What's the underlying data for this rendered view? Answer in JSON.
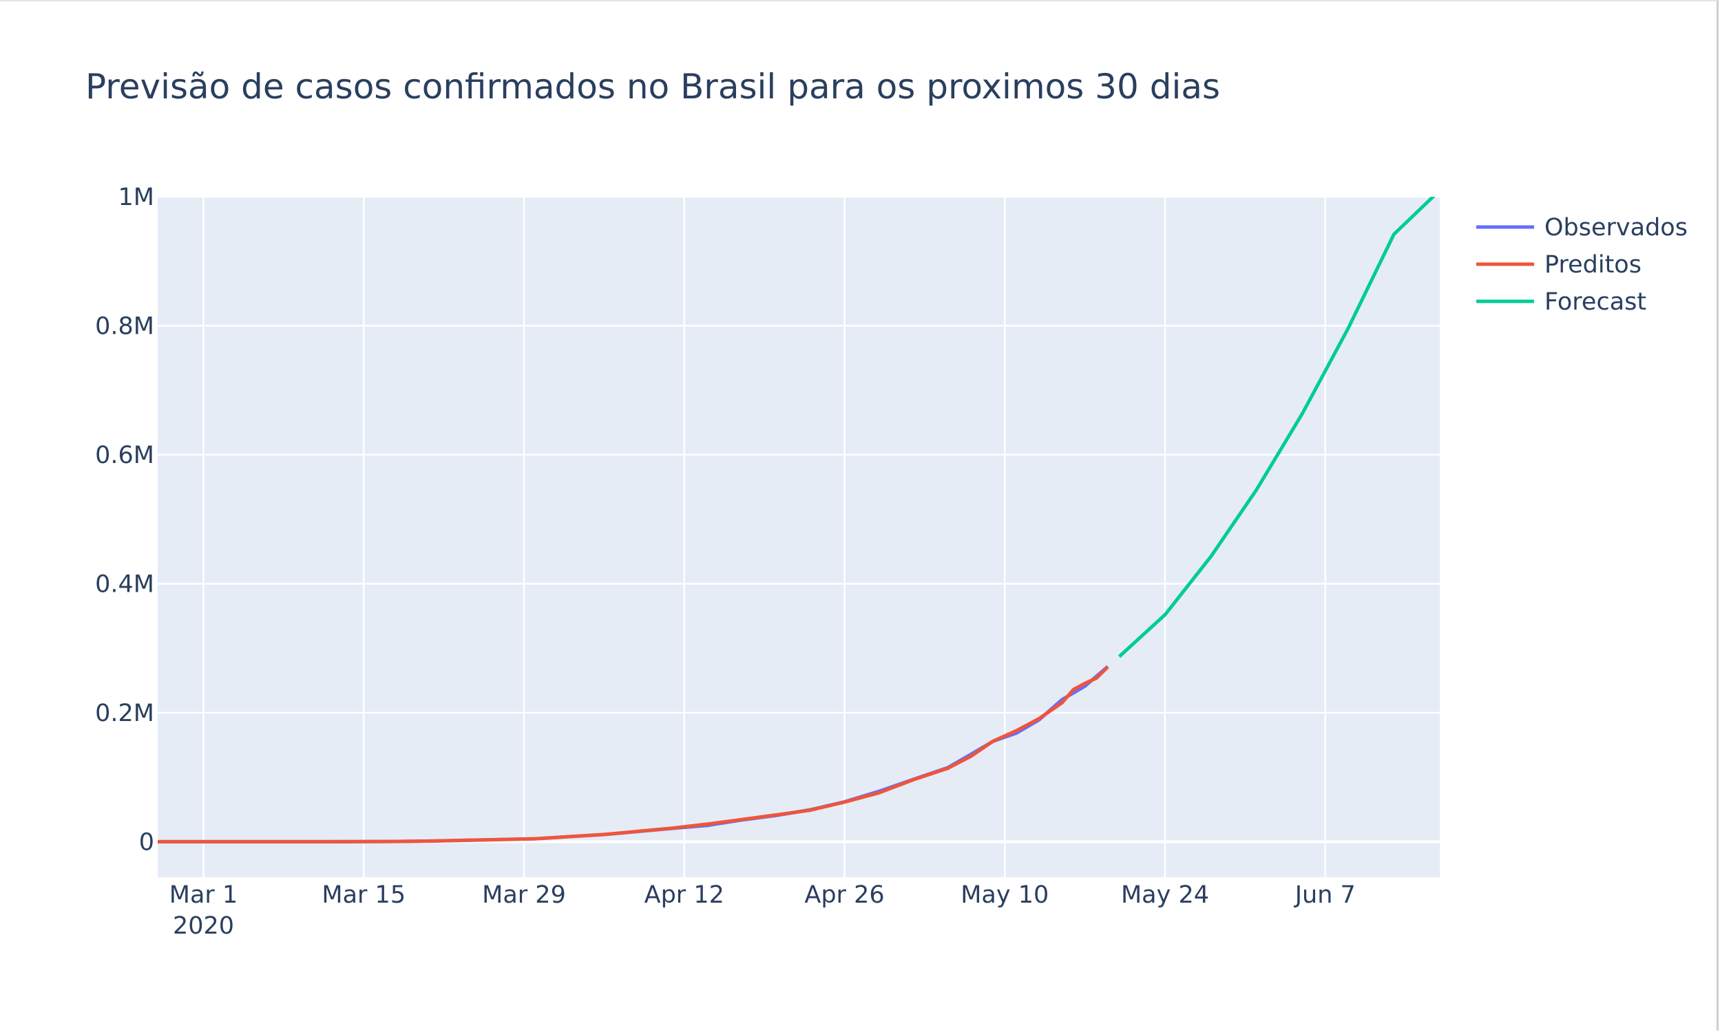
{
  "chart_data": {
    "type": "line",
    "title": "Previsão de casos confirmados no Brasil para os proximos 30 dias",
    "xlabel": "",
    "ylabel": "",
    "x_range": [
      "2020-02-26",
      "2020-06-17"
    ],
    "ylim": [
      -55000,
      1000000
    ],
    "grid": true,
    "legend_position": "top-right",
    "x_ticks": [
      {
        "date": "2020-03-01",
        "label": "Mar 1",
        "sublabel": "2020"
      },
      {
        "date": "2020-03-15",
        "label": "Mar 15"
      },
      {
        "date": "2020-03-29",
        "label": "Mar 29"
      },
      {
        "date": "2020-04-12",
        "label": "Apr 12"
      },
      {
        "date": "2020-04-26",
        "label": "Apr 26"
      },
      {
        "date": "2020-05-10",
        "label": "May 10"
      },
      {
        "date": "2020-05-24",
        "label": "May 24"
      },
      {
        "date": "2020-06-07",
        "label": "Jun 7"
      }
    ],
    "y_ticks": [
      {
        "value": 0,
        "label": "0"
      },
      {
        "value": 200000,
        "label": "0.2M"
      },
      {
        "value": 400000,
        "label": "0.4M"
      },
      {
        "value": 600000,
        "label": "0.6M"
      },
      {
        "value": 800000,
        "label": "0.8M"
      },
      {
        "value": 1000000,
        "label": "1M"
      }
    ],
    "series": [
      {
        "name": "Observados",
        "color": "#636efa",
        "points": [
          [
            "2020-02-26",
            1
          ],
          [
            "2020-03-01",
            2
          ],
          [
            "2020-03-05",
            8
          ],
          [
            "2020-03-10",
            34
          ],
          [
            "2020-03-15",
            200
          ],
          [
            "2020-03-18",
            428
          ],
          [
            "2020-03-21",
            1128
          ],
          [
            "2020-03-24",
            2201
          ],
          [
            "2020-03-27",
            3417
          ],
          [
            "2020-03-30",
            4579
          ],
          [
            "2020-04-02",
            7910
          ],
          [
            "2020-04-05",
            11130
          ],
          [
            "2020-04-08",
            15927
          ],
          [
            "2020-04-11",
            20727
          ],
          [
            "2020-04-14",
            25262
          ],
          [
            "2020-04-17",
            33682
          ],
          [
            "2020-04-20",
            40581
          ],
          [
            "2020-04-23",
            49492
          ],
          [
            "2020-04-26",
            61888
          ],
          [
            "2020-04-29",
            78162
          ],
          [
            "2020-05-02",
            96559
          ],
          [
            "2020-05-05",
            114715
          ],
          [
            "2020-05-07",
            135106
          ],
          [
            "2020-05-09",
            155939
          ],
          [
            "2020-05-11",
            168331
          ],
          [
            "2020-05-13",
            188974
          ],
          [
            "2020-05-15",
            220291
          ],
          [
            "2020-05-17",
            241080
          ],
          [
            "2020-05-19",
            271628
          ]
        ]
      },
      {
        "name": "Preditos",
        "color": "#ef553b",
        "points": [
          [
            "2020-02-26",
            1
          ],
          [
            "2020-03-01",
            3
          ],
          [
            "2020-03-05",
            9
          ],
          [
            "2020-03-10",
            35
          ],
          [
            "2020-03-15",
            210
          ],
          [
            "2020-03-18",
            450
          ],
          [
            "2020-03-21",
            1100
          ],
          [
            "2020-03-24",
            2250
          ],
          [
            "2020-03-27",
            3450
          ],
          [
            "2020-03-30",
            4600
          ],
          [
            "2020-04-02",
            7950
          ],
          [
            "2020-04-05",
            11200
          ],
          [
            "2020-04-08",
            16100
          ],
          [
            "2020-04-11",
            21200
          ],
          [
            "2020-04-14",
            27400
          ],
          [
            "2020-04-17",
            34400
          ],
          [
            "2020-04-20",
            41500
          ],
          [
            "2020-04-23",
            48900
          ],
          [
            "2020-04-26",
            61500
          ],
          [
            "2020-04-29",
            75800
          ],
          [
            "2020-05-02",
            96000
          ],
          [
            "2020-05-05",
            113600
          ],
          [
            "2020-05-07",
            132000
          ],
          [
            "2020-05-09",
            156100
          ],
          [
            "2020-05-11",
            172000
          ],
          [
            "2020-05-13",
            191000
          ],
          [
            "2020-05-15",
            215400
          ],
          [
            "2020-05-16",
            236000
          ],
          [
            "2020-05-17",
            245500
          ],
          [
            "2020-05-18",
            253600
          ],
          [
            "2020-05-19",
            271000
          ]
        ]
      },
      {
        "name": "Forecast",
        "color": "#00cc96",
        "points": [
          [
            "2020-05-20",
            287000
          ],
          [
            "2020-05-24",
            352000
          ],
          [
            "2020-05-28",
            442000
          ],
          [
            "2020-06-01",
            546000
          ],
          [
            "2020-06-05",
            664000
          ],
          [
            "2020-06-09",
            796000
          ],
          [
            "2020-06-13",
            942000
          ],
          [
            "2020-06-17",
            1010000
          ]
        ]
      }
    ]
  }
}
